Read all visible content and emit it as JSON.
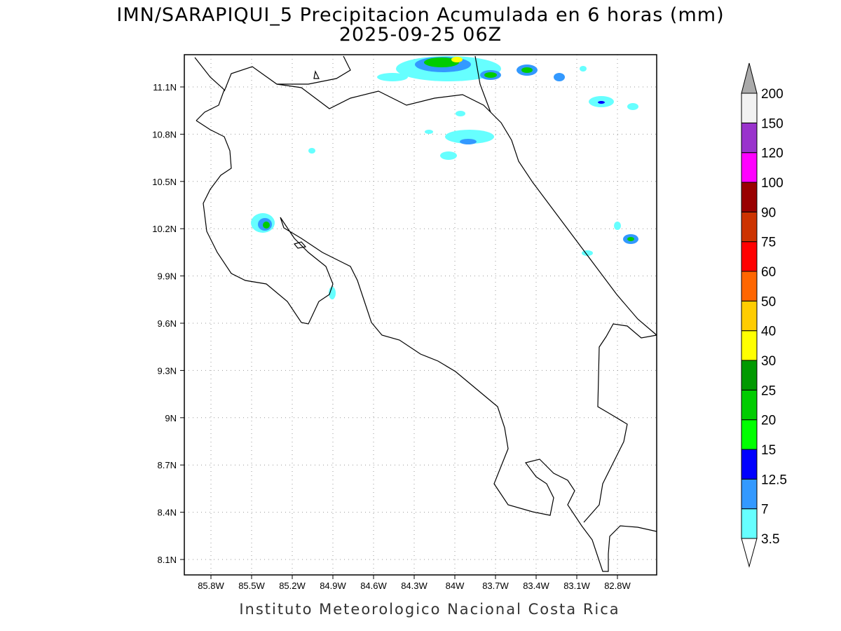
{
  "title": "IMN/SARAPIQUI_5 Precipitacion Acumulada en 6 horas (mm)",
  "subtitle": "2025-09-25 06Z",
  "map": {
    "lon_ticks": [
      "85.8W",
      "85.5W",
      "85.2W",
      "84.9W",
      "84.6W",
      "84.3W",
      "84W",
      "83.7W",
      "83.4W",
      "83.1W",
      "82.8W"
    ],
    "lat_ticks": [
      "11.1N",
      "10.8N",
      "10.5N",
      "10.2N",
      "9.9N",
      "9.6N",
      "9.3N",
      "9N",
      "8.7N",
      "8.4N",
      "8.1N"
    ]
  },
  "colorbar": {
    "levels": [
      3.5,
      7,
      12.5,
      15,
      20,
      25,
      30,
      40,
      50,
      60,
      75,
      90,
      100,
      120,
      150,
      200
    ],
    "colors": [
      "#ffffff",
      "#66ffff",
      "#3399ff",
      "#0000ff",
      "#00ff00",
      "#00cc00",
      "#009900",
      "#ffff00",
      "#ffcc00",
      "#ff6600",
      "#ff0000",
      "#cc3300",
      "#990000",
      "#ff00ff",
      "#9933cc",
      "#f2f2f2",
      "#aaaaaa"
    ]
  },
  "footer": "Instituto Meteorologico Nacional Costa Rica"
}
